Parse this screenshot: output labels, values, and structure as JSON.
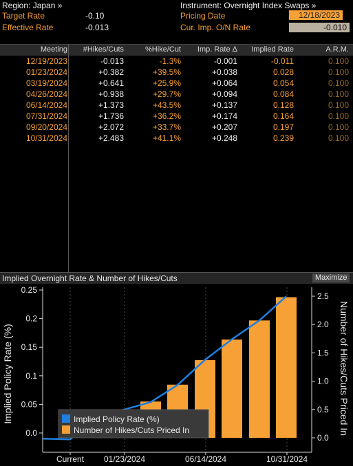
{
  "header": {
    "region": "Region: Japan »",
    "instrument": "Instrument: Overnight Index Swaps »",
    "target_rate_label": "Target Rate",
    "target_rate_value": "-0.10",
    "effective_rate_label": "Effective Rate",
    "effective_rate_value": "-0.013",
    "pricing_date_label": "Pricing Date",
    "pricing_date_value": "12/18/2023",
    "cur_imp_label": "Cur. Imp. O/N Rate",
    "cur_imp_value": "-0.010"
  },
  "table": {
    "columns": [
      "Meeting",
      "#Hikes/Cuts",
      "%Hike/Cut",
      "Imp. Rate Δ",
      "Implied Rate",
      "A.R.M."
    ],
    "rows": [
      {
        "meeting": "12/19/2023",
        "hikes": "-0.013",
        "pct": "-1.3%",
        "delta": "-0.001",
        "implied": "-0.011",
        "arm": "0.100"
      },
      {
        "meeting": "01/23/2024",
        "hikes": "+0.382",
        "pct": "+39.5%",
        "delta": "+0.038",
        "implied": "0.028",
        "arm": "0.100"
      },
      {
        "meeting": "03/19/2024",
        "hikes": "+0.641",
        "pct": "+25.9%",
        "delta": "+0.064",
        "implied": "0.054",
        "arm": "0.100"
      },
      {
        "meeting": "04/26/2024",
        "hikes": "+0.938",
        "pct": "+29.7%",
        "delta": "+0.094",
        "implied": "0.084",
        "arm": "0.100"
      },
      {
        "meeting": "06/14/2024",
        "hikes": "+1.373",
        "pct": "+43.5%",
        "delta": "+0.137",
        "implied": "0.128",
        "arm": "0.100"
      },
      {
        "meeting": "07/31/2024",
        "hikes": "+1.736",
        "pct": "+36.2%",
        "delta": "+0.174",
        "implied": "0.164",
        "arm": "0.100"
      },
      {
        "meeting": "09/20/2024",
        "hikes": "+2.072",
        "pct": "+33.7%",
        "delta": "+0.207",
        "implied": "0.197",
        "arm": "0.100"
      },
      {
        "meeting": "10/31/2024",
        "hikes": "+2.483",
        "pct": "+41.1%",
        "delta": "+0.248",
        "implied": "0.239",
        "arm": "0.100"
      }
    ]
  },
  "chart_panel": {
    "title": "Implied Overnight Rate & Number of Hikes/Cuts",
    "maximize_label": "Maximize"
  },
  "colors": {
    "accent_orange": "#f7a035",
    "line_blue": "#1f7fe0",
    "date_box": "#f7a035",
    "rate_box": "#b9b0a0"
  },
  "chart_data": {
    "type": "bar",
    "categories": [
      "Current",
      "12/19/2023",
      "01/23/2024",
      "03/19/2024",
      "04/26/2024",
      "06/14/2024",
      "07/31/2024",
      "09/20/2024",
      "10/31/2024"
    ],
    "series": [
      {
        "name": "Implied Policy Rate (%)",
        "type": "line",
        "axis": "left",
        "color": "#1f7fe0",
        "values": [
          -0.01,
          -0.011,
          0.028,
          0.054,
          0.084,
          0.128,
          0.164,
          0.197,
          0.239
        ]
      },
      {
        "name": "Number of Hikes/Cuts Priced In",
        "type": "bar",
        "axis": "right",
        "color": "#f7a035",
        "values": [
          0,
          -0.013,
          0.382,
          0.641,
          0.938,
          1.373,
          1.736,
          2.072,
          2.483
        ]
      }
    ],
    "xtick_labels": [
      "Current",
      "01/23/2024",
      "06/14/2024",
      "10/31/2024"
    ],
    "ylabel": "Implied Policy Rate (%)",
    "y2label": "Number of Hikes/Cuts Priced In",
    "ylim": [
      -0.01,
      0.25
    ],
    "y2lim": [
      -0.1,
      2.5
    ],
    "yticks": [
      "0.25",
      "0.2",
      "0.15",
      "0.1",
      "0.05",
      "0.0"
    ],
    "y2ticks": [
      "2.5",
      "2.0",
      "1.5",
      "1.0",
      "0.5",
      "0.0"
    ],
    "legend_position": "bottom-left",
    "grid": true
  }
}
